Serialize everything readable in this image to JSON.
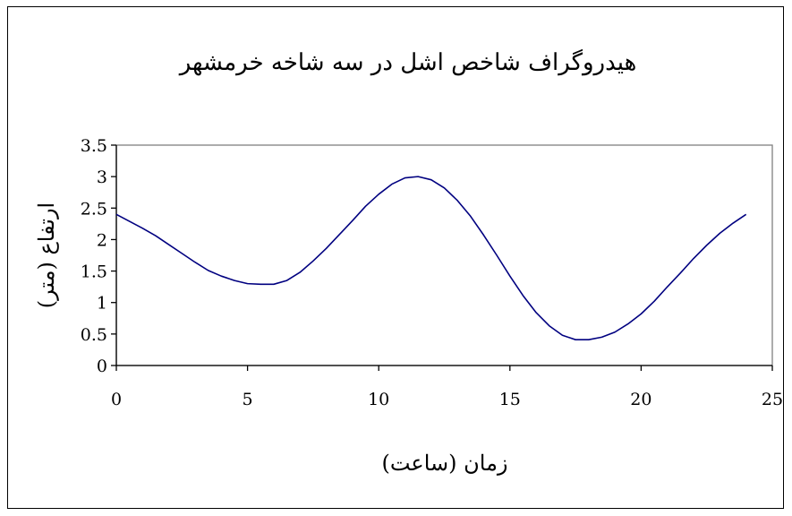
{
  "chart_data": {
    "type": "line",
    "title": "هیدروگراف شاخص اشل در سه شاخه خرمشهر",
    "xlabel": "زمان (ساعت)",
    "ylabel": "ارتفاع (متر)",
    "xlim": [
      0,
      25
    ],
    "ylim": [
      0,
      3.5
    ],
    "x_ticks": [
      "0",
      "5",
      "10",
      "15",
      "20",
      "25"
    ],
    "y_ticks": [
      "0",
      "0.5",
      "1",
      "1.5",
      "2",
      "2.5",
      "3",
      "3.5"
    ],
    "grid": false,
    "legend": "none",
    "colors": {
      "line": "#000080",
      "plot_border": "#808080",
      "axis": "#000000"
    },
    "series": [
      {
        "x": [
          0,
          0.5,
          1,
          1.5,
          2,
          2.5,
          3,
          3.5,
          4,
          4.5,
          5,
          5.5,
          6,
          6.5,
          7,
          7.5,
          8,
          8.5,
          9,
          9.5,
          10,
          10.5,
          11,
          11.5,
          12,
          12.5,
          13,
          13.5,
          14,
          14.5,
          15,
          15.5,
          16,
          16.5,
          17,
          17.5,
          18,
          18.5,
          19,
          19.5,
          20,
          20.5,
          21,
          21.5,
          22,
          22.5,
          23,
          23.5,
          24
        ],
        "y": [
          2.4,
          2.29,
          2.18,
          2.06,
          1.92,
          1.78,
          1.64,
          1.51,
          1.42,
          1.35,
          1.3,
          1.29,
          1.29,
          1.35,
          1.48,
          1.66,
          1.86,
          2.08,
          2.3,
          2.53,
          2.72,
          2.88,
          2.98,
          3.0,
          2.95,
          2.82,
          2.62,
          2.37,
          2.07,
          1.75,
          1.42,
          1.11,
          0.84,
          0.63,
          0.48,
          0.41,
          0.41,
          0.45,
          0.53,
          0.66,
          0.82,
          1.02,
          1.25,
          1.47,
          1.7,
          1.91,
          2.1,
          2.26,
          2.4
        ]
      }
    ]
  }
}
